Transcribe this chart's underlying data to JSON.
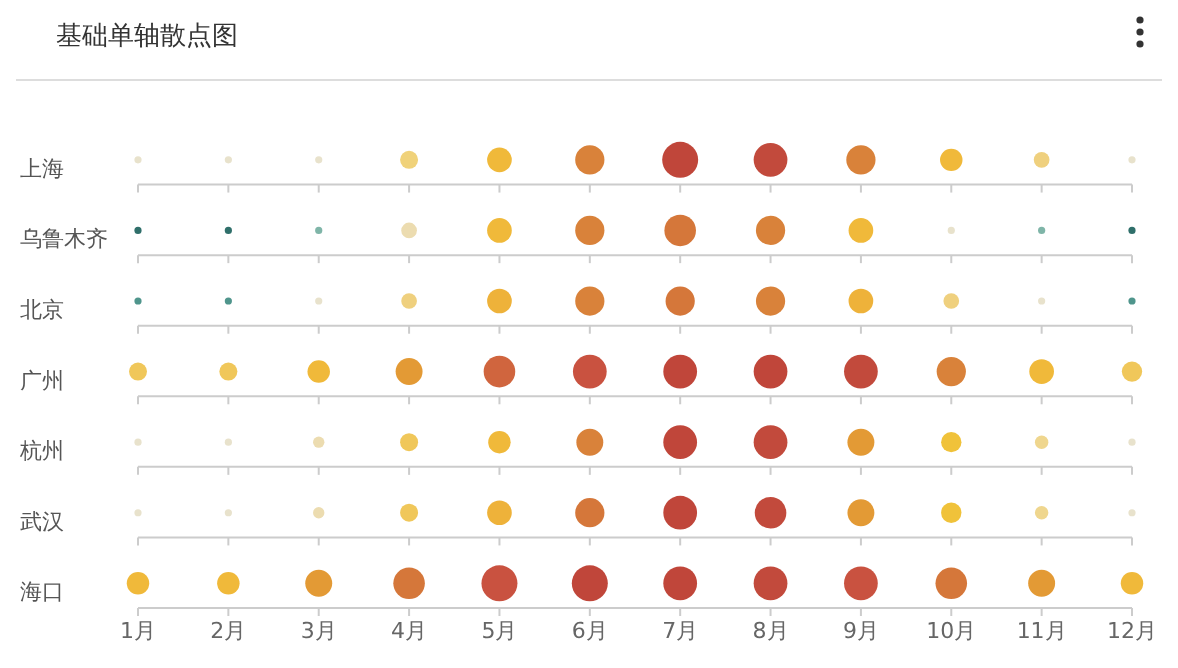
{
  "chart_data": {
    "type": "bubble",
    "title": "基础单轴散点图",
    "orientation": "horizontal",
    "categories": [
      "上海",
      "乌鲁木齐",
      "北京",
      "广州",
      "杭州",
      "武汉",
      "海口"
    ],
    "xlim": [
      1,
      12
    ],
    "xticks": [
      {
        "value": 1,
        "label": "1月"
      },
      {
        "value": 2,
        "label": "2月"
      },
      {
        "value": 3,
        "label": "3月"
      },
      {
        "value": 4,
        "label": "4月"
      },
      {
        "value": 5,
        "label": "5月"
      },
      {
        "value": 6,
        "label": "6月"
      },
      {
        "value": 7,
        "label": "7月"
      },
      {
        "value": 8,
        "label": "8月"
      },
      {
        "value": 9,
        "label": "9月"
      },
      {
        "value": 10,
        "label": "10月"
      },
      {
        "value": 11,
        "label": "11月"
      },
      {
        "value": 12,
        "label": "12月"
      }
    ],
    "series": [
      {
        "values": [
          1,
          1,
          1,
          1,
          1,
          1,
          1
        ],
        "sizes": [
          0.04,
          0.04,
          0.04,
          0.25,
          0.04,
          0.04,
          0.39
        ],
        "colors": [
          "#e8e2cc",
          "#2f6f6a",
          "#4f958c",
          "#f0c75a",
          "#e8e2cc",
          "#e8e2cc",
          "#f0b93a"
        ]
      },
      {
        "values": [
          2,
          2,
          2,
          2,
          2,
          2,
          2
        ],
        "sizes": [
          0.04,
          0.04,
          0.04,
          0.25,
          0.04,
          0.04,
          0.39
        ],
        "colors": [
          "#e8e2cc",
          "#2f6f6a",
          "#4f958c",
          "#f0c75a",
          "#e8e2cc",
          "#e8e2cc",
          "#f0b93a"
        ]
      },
      {
        "values": [
          3,
          3,
          3,
          3,
          3,
          3,
          3
        ],
        "sizes": [
          0.04,
          0.04,
          0.04,
          0.39,
          0.1,
          0.1,
          0.56
        ],
        "colors": [
          "#e8e2cc",
          "#7fb5a8",
          "#e8e2cc",
          "#f0b93a",
          "#ecdcb0",
          "#ecdcb0",
          "#e39a35"
        ]
      },
      {
        "values": [
          4,
          4,
          4,
          4,
          4,
          4,
          4
        ],
        "sizes": [
          0.25,
          0.19,
          0.19,
          0.56,
          0.25,
          0.25,
          0.77
        ],
        "colors": [
          "#f0d27a",
          "#ecdcb0",
          "#efd07e",
          "#e39a35",
          "#f0c75a",
          "#f0c75a",
          "#d5773a"
        ]
      },
      {
        "values": [
          5,
          5,
          5,
          5,
          5,
          5,
          5
        ],
        "sizes": [
          0.47,
          0.47,
          0.47,
          0.77,
          0.39,
          0.47,
          1
        ],
        "colors": [
          "#f0b93a",
          "#f0b93a",
          "#eeb23a",
          "#d0653e",
          "#f0b93a",
          "#eeb23a",
          "#c95240"
        ]
      },
      {
        "values": [
          6,
          6,
          6,
          6,
          6,
          6,
          6
        ],
        "sizes": [
          0.66,
          0.66,
          0.66,
          0.88,
          0.56,
          0.66,
          1
        ],
        "colors": [
          "#d9823a",
          "#d9823a",
          "#d9823a",
          "#c95240",
          "#d9823a",
          "#d5773a",
          "#c0463a"
        ]
      },
      {
        "values": [
          7,
          7,
          7,
          7,
          7,
          7,
          7
        ],
        "sizes": [
          1,
          0.77,
          0.66,
          0.88,
          0.88,
          0.88,
          0.88
        ],
        "colors": [
          "#c0463a",
          "#d5773a",
          "#d5773a",
          "#c0463a",
          "#c0463a",
          "#c0463a",
          "#c0463a"
        ]
      },
      {
        "values": [
          8,
          8,
          8,
          8,
          8,
          8,
          8
        ],
        "sizes": [
          0.88,
          0.66,
          0.66,
          0.88,
          0.88,
          0.77,
          0.88
        ],
        "colors": [
          "#c24a3c",
          "#d9823a",
          "#d9823a",
          "#c0463a",
          "#c24a3c",
          "#c24a3c",
          "#c24a3c"
        ]
      },
      {
        "values": [
          9,
          9,
          9,
          9,
          9,
          9,
          9
        ],
        "sizes": [
          0.66,
          0.47,
          0.47,
          0.88,
          0.56,
          0.56,
          0.88
        ],
        "colors": [
          "#d9823a",
          "#f0b93a",
          "#eeb23a",
          "#c24a3c",
          "#e39a35",
          "#e39a35",
          "#c95240"
        ]
      },
      {
        "values": [
          10,
          10,
          10,
          10,
          10,
          10,
          10
        ],
        "sizes": [
          0.39,
          0.04,
          0.19,
          0.66,
          0.32,
          0.32,
          0.77
        ],
        "colors": [
          "#f0b93a",
          "#e8e2cc",
          "#efd07e",
          "#d9823a",
          "#f0c23a",
          "#f0c23a",
          "#d5773a"
        ]
      },
      {
        "values": [
          11,
          11,
          11,
          11,
          11,
          11,
          11
        ],
        "sizes": [
          0.19,
          0.04,
          0.04,
          0.47,
          0.14,
          0.14,
          0.56
        ],
        "colors": [
          "#efd07e",
          "#7fb5a8",
          "#e8e2cc",
          "#f0b93a",
          "#efd68e",
          "#efd68e",
          "#e39a35"
        ]
      },
      {
        "values": [
          12,
          12,
          12,
          12,
          12,
          12,
          12
        ],
        "sizes": [
          0.04,
          0.04,
          0.04,
          0.32,
          0.04,
          0.04,
          0.39
        ],
        "colors": [
          "#e8e2cc",
          "#2f6f6a",
          "#4f958c",
          "#f0c75a",
          "#e8e2cc",
          "#e8e2cc",
          "#f0b93a"
        ]
      }
    ]
  }
}
